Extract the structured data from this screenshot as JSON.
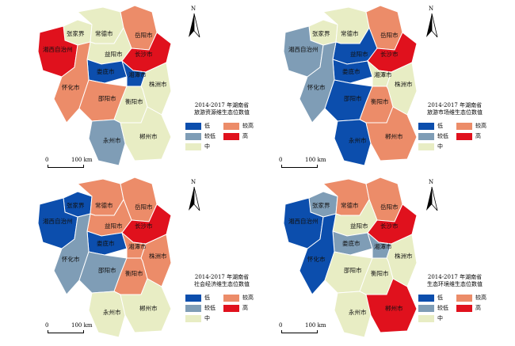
{
  "legend_labels": {
    "low": "低",
    "lower": "较低",
    "mid": "中",
    "higher": "较高",
    "high": "高"
  },
  "colors": {
    "low": "#0c4ead",
    "lower": "#7f9db6",
    "mid": "#e8edc4",
    "higher": "#ec8c69",
    "high": "#e0111d"
  },
  "north_label": "N",
  "scale": {
    "zero": "0",
    "dist": "100 km"
  },
  "cities": {
    "zjj": "张家界",
    "cd": "常德市",
    "yy": "岳阳市",
    "xx": "湘西自治州",
    "yiy": "益阳市",
    "cs": "长沙市",
    "ld": "娄底市",
    "xt": "湘潭市",
    "hh": "怀化市",
    "zz": "株洲市",
    "sy": "邵阳市",
    "hy": "衡阳市",
    "yz": "永州市",
    "cz": "郴州市"
  },
  "maps": [
    {
      "title_line1": "2014-2017 年湖南省",
      "title_line2": "旅游资源维生态位数值",
      "levels": {
        "zjj": "mid",
        "cd": "mid",
        "yy": "higher",
        "xx": "high",
        "yiy": "mid",
        "cs": "high",
        "ld": "low",
        "xt": "low",
        "hh": "higher",
        "zz": "mid",
        "sy": "higher",
        "hy": "mid",
        "yz": "lower",
        "cz": "mid"
      }
    },
    {
      "title_line1": "2014-2017 年湖南省",
      "title_line2": "旅游市场维生态位数值",
      "levels": {
        "zjj": "mid",
        "cd": "mid",
        "yy": "higher",
        "xx": "lower",
        "yiy": "low",
        "cs": "high",
        "ld": "low",
        "xt": "mid",
        "hh": "lower",
        "zz": "mid",
        "sy": "low",
        "hy": "higher",
        "yz": "low",
        "cz": "higher"
      }
    },
    {
      "title_line1": "2014-2017 年湖南省",
      "title_line2": "社会经济维生态位数值",
      "levels": {
        "zjj": "low",
        "cd": "higher",
        "yy": "higher",
        "xx": "low",
        "yiy": "higher",
        "cs": "high",
        "ld": "low",
        "xt": "higher",
        "hh": "lower",
        "zz": "higher",
        "sy": "lower",
        "hy": "higher",
        "yz": "mid",
        "cz": "mid"
      }
    },
    {
      "title_line1": "2014-2017 年湖南省",
      "title_line2": "生态环境维生态位数值",
      "levels": {
        "zjj": "lower",
        "cd": "higher",
        "yy": "higher",
        "xx": "low",
        "yiy": "mid",
        "cs": "high",
        "ld": "lower",
        "xt": "lower",
        "hh": "low",
        "zz": "mid",
        "sy": "mid",
        "hy": "mid",
        "yz": "mid",
        "cz": "high"
      }
    }
  ]
}
